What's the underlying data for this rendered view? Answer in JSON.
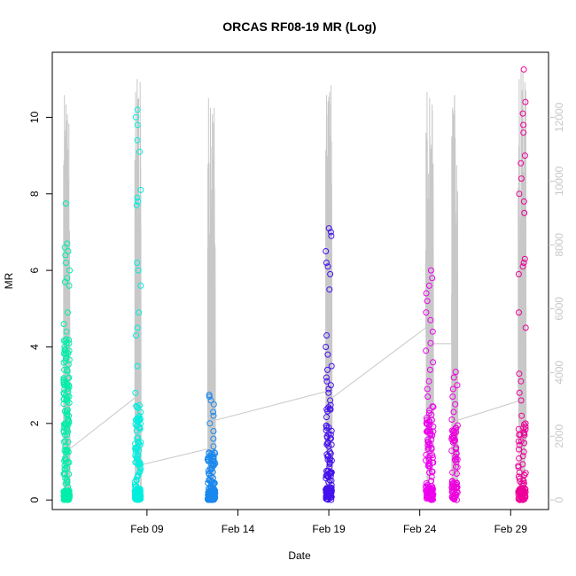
{
  "chart_data": {
    "type": "scatter",
    "title": "ORCAS RF08-19 MR (Log)",
    "xlabel": "Date",
    "ylabel": "MR",
    "x_axis": {
      "type": "date",
      "range": [
        "2016-02-03T19:00",
        "2016-03-02T02:00"
      ],
      "ticks": [
        {
          "date": "2016-02-09",
          "label": "Feb 09"
        },
        {
          "date": "2016-02-14",
          "label": "Feb 14"
        },
        {
          "date": "2016-02-19",
          "label": "Feb 19"
        },
        {
          "date": "2016-02-24",
          "label": "Feb 24"
        },
        {
          "date": "2016-02-29",
          "label": "Feb 29"
        }
      ]
    },
    "y_axis": {
      "range": [
        -0.25,
        11.7
      ],
      "ticks": [
        0,
        2,
        4,
        6,
        8,
        10
      ]
    },
    "y2_axis": {
      "color": "#c8c8c8",
      "range": [
        -300,
        14040
      ],
      "ticks": [
        0,
        2000,
        4000,
        6000,
        8000,
        10000,
        12000
      ]
    },
    "background_series": {
      "color": "#c8c8c8",
      "flights": [
        {
          "start": "2016-02-04T10:00",
          "end": "2016-02-04T18:00",
          "peaks": [
            12700,
            12400,
            12100,
            11800
          ],
          "base": 1400
        },
        {
          "start": "2016-02-08T08:00",
          "end": "2016-02-08T16:00",
          "peaks": [
            12800,
            13200,
            12600,
            13100
          ],
          "base": 3200
        },
        {
          "start": "2016-02-12T08:00",
          "end": "2016-02-12T18:00",
          "peaks": [
            12600,
            12300,
            12100,
            12300
          ],
          "base": 2600
        },
        {
          "start": "2016-02-18T20:00",
          "end": "2016-02-19T04:00",
          "peaks": [
            12700,
            12500,
            12800,
            13000
          ],
          "base": 3300
        },
        {
          "start": "2016-02-24T08:00",
          "end": "2016-02-24T18:00",
          "peaks": [
            12800,
            12600,
            12400
          ],
          "base": 5400
        },
        {
          "start": "2016-02-25T18:00",
          "end": "2016-02-26T02:00",
          "peaks": [
            12300,
            12700,
            10500
          ],
          "base": 4900
        },
        {
          "start": "2016-02-29T10:00",
          "end": "2016-02-29T20:00",
          "peaks": [
            13200,
            13500,
            13400,
            13100
          ],
          "base": 3500
        }
      ],
      "connectors": [
        [
          "2016-02-04T18:00",
          1600,
          "2016-02-08T08:00",
          3200
        ],
        [
          "2016-02-08T16:00",
          1100,
          "2016-02-12T08:00",
          1600
        ],
        [
          "2016-02-12T18:00",
          2500,
          "2016-02-18T20:00",
          3400
        ],
        [
          "2016-02-19T04:00",
          3200,
          "2016-02-24T08:00",
          5400
        ],
        [
          "2016-02-24T18:00",
          4900,
          "2016-02-25T18:00",
          4900
        ],
        [
          "2016-02-26T02:00",
          2500,
          "2016-02-29T10:00",
          3100
        ]
      ]
    },
    "series": [
      {
        "color": "#00eeaa",
        "start": "2016-02-04T10:00",
        "end": "2016-02-04T18:00",
        "bulk_max": 3.2,
        "clusters": [
          [
            0.0,
            0.25,
            80
          ],
          [
            0.3,
            1.5,
            30
          ],
          [
            1.5,
            3.2,
            60
          ],
          [
            3.2,
            4.2,
            20
          ]
        ],
        "values": [
          3.4,
          3.8,
          4.0,
          4.2,
          4.4,
          4.6,
          4.9,
          5.6,
          5.7,
          5.8,
          6.0,
          6.2,
          6.4,
          6.5,
          6.6,
          6.7,
          7.75
        ]
      },
      {
        "color": "#00eedd",
        "start": "2016-02-08T08:00",
        "end": "2016-02-08T16:00",
        "bulk_max": 2.5,
        "clusters": [
          [
            0.0,
            0.3,
            70
          ],
          [
            0.3,
            1.4,
            35
          ],
          [
            1.4,
            2.5,
            30
          ]
        ],
        "values": [
          2.8,
          3.5,
          4.3,
          4.5,
          4.9,
          5.6,
          6.0,
          6.2,
          7.7,
          7.8,
          7.9,
          8.1,
          9.1,
          9.4,
          9.8,
          10.0,
          10.2
        ]
      },
      {
        "color": "#1a88ee",
        "start": "2016-02-12T08:00",
        "end": "2016-02-12T18:00",
        "bulk_max": 1.3,
        "clusters": [
          [
            0.0,
            0.25,
            80
          ],
          [
            0.25,
            1.3,
            60
          ]
        ],
        "values": [
          1.4,
          1.6,
          1.8,
          2.0,
          2.2,
          2.3,
          2.5,
          2.6,
          2.7,
          2.75
        ]
      },
      {
        "color": "#4411ee",
        "start": "2016-02-18T20:00",
        "end": "2016-02-19T04:00",
        "bulk_max": 2.5,
        "clusters": [
          [
            0.0,
            0.3,
            60
          ],
          [
            0.3,
            1.5,
            40
          ],
          [
            1.5,
            2.5,
            20
          ]
        ],
        "values": [
          2.6,
          2.8,
          2.9,
          3.0,
          3.1,
          3.2,
          3.4,
          3.5,
          3.8,
          4.0,
          4.3,
          5.5,
          5.9,
          6.1,
          6.2,
          6.5,
          6.9,
          7.0,
          7.1
        ]
      },
      {
        "color": "#ee00ee",
        "start": "2016-02-24T08:00",
        "end": "2016-02-24T18:00",
        "bulk_max": 2.5,
        "clusters": [
          [
            0.0,
            0.3,
            60
          ],
          [
            0.3,
            1.5,
            35
          ],
          [
            1.5,
            2.5,
            30
          ]
        ],
        "values": [
          2.7,
          2.9,
          3.1,
          3.4,
          3.6,
          3.9,
          4.1,
          4.4,
          4.7,
          4.9,
          5.2,
          5.4,
          5.6,
          5.8,
          6.0
        ]
      },
      {
        "color": "#ee00dd",
        "start": "2016-02-25T18:00",
        "end": "2016-02-26T02:00",
        "bulk_max": 2.0,
        "clusters": [
          [
            0.0,
            0.5,
            40
          ],
          [
            0.5,
            1.5,
            15
          ],
          [
            1.5,
            2.0,
            20
          ]
        ],
        "values": [
          2.1,
          2.3,
          2.5,
          2.7,
          2.9,
          3.0,
          3.2,
          3.35
        ]
      },
      {
        "color": "#ee0099",
        "start": "2016-02-29T10:00",
        "end": "2016-02-29T20:00",
        "bulk_max": 2.0,
        "clusters": [
          [
            0.0,
            0.3,
            60
          ],
          [
            0.3,
            2.0,
            35
          ]
        ],
        "values": [
          2.2,
          2.6,
          2.8,
          3.1,
          3.3,
          4.5,
          4.9,
          5.9,
          6.1,
          6.2,
          6.3,
          7.5,
          7.8,
          8.0,
          8.4,
          8.8,
          9.0,
          9.6,
          9.8,
          10.1,
          10.4,
          11.25
        ]
      }
    ]
  }
}
